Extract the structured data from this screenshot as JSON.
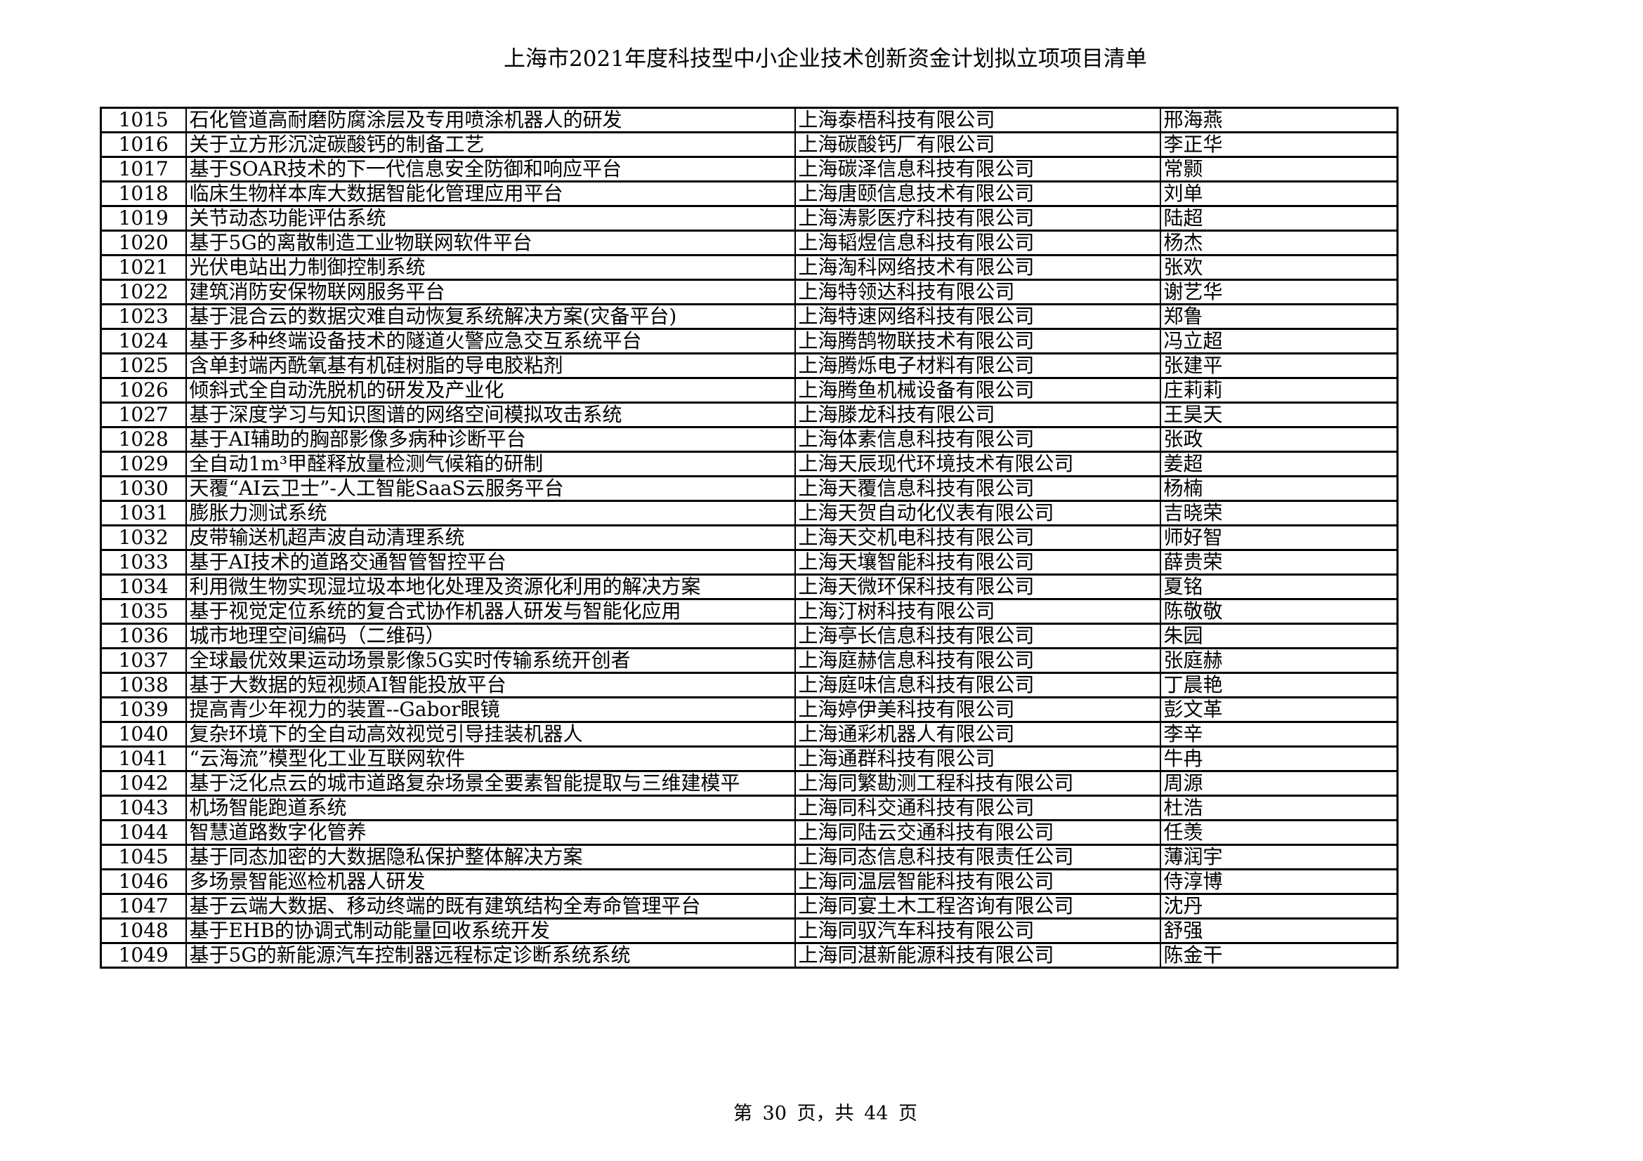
{
  "title": "上海市2021年度科技型中小企业技术创新资金计划拟立项项目清单",
  "rows": [
    {
      "no": "1015",
      "project": "石化管道高耐磨防腐涂层及专用喷涂机器人的研发",
      "company": "上海泰梧科技有限公司",
      "person": "邢海燕"
    },
    {
      "no": "1016",
      "project": "关于立方形沉淀碳酸钙的制备工艺",
      "company": "上海碳酸钙厂有限公司",
      "person": "李正华"
    },
    {
      "no": "1017",
      "project": "基于SOAR技术的下一代信息安全防御和响应平台",
      "company": "上海碳泽信息科技有限公司",
      "person": "常颢"
    },
    {
      "no": "1018",
      "project": "临床生物样本库大数据智能化管理应用平台",
      "company": "上海唐颐信息技术有限公司",
      "person": "刘单"
    },
    {
      "no": "1019",
      "project": "关节动态功能评估系统",
      "company": "上海涛影医疗科技有限公司",
      "person": "陆超"
    },
    {
      "no": "1020",
      "project": "基于5G的离散制造工业物联网软件平台",
      "company": "上海韬煜信息科技有限公司",
      "person": "杨杰"
    },
    {
      "no": "1021",
      "project": "光伏电站出力制御控制系统",
      "company": "上海淘科网络技术有限公司",
      "person": "张欢"
    },
    {
      "no": "1022",
      "project": "建筑消防安保物联网服务平台",
      "company": "上海特领达科技有限公司",
      "person": "谢艺华"
    },
    {
      "no": "1023",
      "project": "基于混合云的数据灾难自动恢复系统解决方案(灾备平台)",
      "company": "上海特速网络科技有限公司",
      "person": "郑鲁"
    },
    {
      "no": "1024",
      "project": "基于多种终端设备技术的隧道火警应急交互系统平台",
      "company": "上海腾鹄物联技术有限公司",
      "person": "冯立超"
    },
    {
      "no": "1025",
      "project": "含单封端丙酰氧基有机硅树脂的导电胶粘剂",
      "company": "上海腾烁电子材料有限公司",
      "person": "张建平"
    },
    {
      "no": "1026",
      "project": "倾斜式全自动洗脱机的研发及产业化",
      "company": "上海腾鱼机械设备有限公司",
      "person": "庄莉莉"
    },
    {
      "no": "1027",
      "project": "基于深度学习与知识图谱的网络空间模拟攻击系统",
      "company": "上海滕龙科技有限公司",
      "person": "王昊天"
    },
    {
      "no": "1028",
      "project": "基于AI辅助的胸部影像多病种诊断平台",
      "company": "上海体素信息科技有限公司",
      "person": "张政"
    },
    {
      "no": "1029",
      "project": "全自动1m³甲醛释放量检测气候箱的研制",
      "company": "上海天辰现代环境技术有限公司",
      "person": "姜超"
    },
    {
      "no": "1030",
      "project": "天覆“AI云卫士”-人工智能SaaS云服务平台",
      "company": "上海天覆信息科技有限公司",
      "person": "杨楠"
    },
    {
      "no": "1031",
      "project": "膨胀力测试系统",
      "company": "上海天贺自动化仪表有限公司",
      "person": "吉晓荣"
    },
    {
      "no": "1032",
      "project": "皮带输送机超声波自动清理系统",
      "company": "上海天交机电科技有限公司",
      "person": "师好智"
    },
    {
      "no": "1033",
      "project": "基于AI技术的道路交通智管智控平台",
      "company": "上海天壤智能科技有限公司",
      "person": "薛贵荣"
    },
    {
      "no": "1034",
      "project": "利用微生物实现湿垃圾本地化处理及资源化利用的解决方案",
      "company": "上海天微环保科技有限公司",
      "person": "夏铭"
    },
    {
      "no": "1035",
      "project": "基于视觉定位系统的复合式协作机器人研发与智能化应用",
      "company": "上海汀树科技有限公司",
      "person": "陈敬敬"
    },
    {
      "no": "1036",
      "project": "城市地理空间编码（二维码）",
      "company": "上海亭长信息科技有限公司",
      "person": "朱园"
    },
    {
      "no": "1037",
      "project": "全球最优效果运动场景影像5G实时传输系统开创者",
      "company": "上海庭赫信息科技有限公司",
      "person": "张庭赫"
    },
    {
      "no": "1038",
      "project": "基于大数据的短视频AI智能投放平台",
      "company": "上海庭味信息科技有限公司",
      "person": "丁晨艳"
    },
    {
      "no": "1039",
      "project": "提高青少年视力的装置--Gabor眼镜",
      "company": "上海婷伊美科技有限公司",
      "person": "彭文革"
    },
    {
      "no": "1040",
      "project": "复杂环境下的全自动高效视觉引导挂装机器人",
      "company": "上海通彩机器人有限公司",
      "person": "李辛"
    },
    {
      "no": "1041",
      "project": "“云海流”模型化工业互联网软件",
      "company": "上海通群科技有限公司",
      "person": "牛冉"
    },
    {
      "no": "1042",
      "project": "基于泛化点云的城市道路复杂场景全要素智能提取与三维建模平",
      "company": "上海同繁勘测工程科技有限公司",
      "person": "周源"
    },
    {
      "no": "1043",
      "project": "机场智能跑道系统",
      "company": "上海同科交通科技有限公司",
      "person": "杜浩"
    },
    {
      "no": "1044",
      "project": "智慧道路数字化管养",
      "company": "上海同陆云交通科技有限公司",
      "person": "任羡"
    },
    {
      "no": "1045",
      "project": "基于同态加密的大数据隐私保护整体解决方案",
      "company": "上海同态信息科技有限责任公司",
      "person": "薄润宇"
    },
    {
      "no": "1046",
      "project": "多场景智能巡检机器人研发",
      "company": "上海同温层智能科技有限公司",
      "person": "侍淳博"
    },
    {
      "no": "1047",
      "project": "基于云端大数据、移动终端的既有建筑结构全寿命管理平台",
      "company": "上海同宴土木工程咨询有限公司",
      "person": "沈丹"
    },
    {
      "no": "1048",
      "project": "基于EHB的协调式制动能量回收系统开发",
      "company": "上海同驭汽车科技有限公司",
      "person": "舒强"
    },
    {
      "no": "1049",
      "project": "基于5G的新能源汽车控制器远程标定诊断系统系统",
      "company": "上海同湛新能源科技有限公司",
      "person": "陈金干"
    }
  ],
  "footer": "第 30 页，共 44 页"
}
